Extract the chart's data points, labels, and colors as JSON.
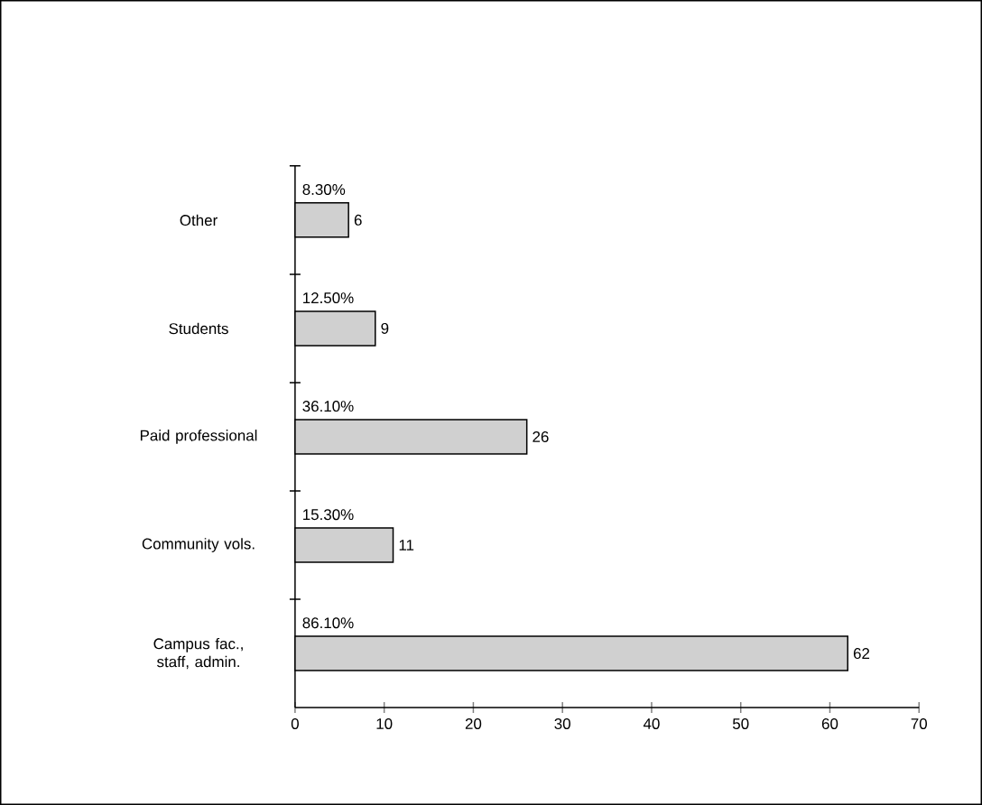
{
  "chart_data": {
    "type": "bar",
    "orientation": "horizontal",
    "categories": [
      "Other",
      "Students",
      "Paid professional",
      "Community vols.",
      "Campus fac., staff, admin."
    ],
    "values": [
      6,
      9,
      26,
      11,
      62
    ],
    "color": "#d0d0d0",
    "data_labels": true,
    "xlim": [
      0,
      70
    ],
    "xticks": [
      0,
      10,
      20,
      30,
      40,
      50,
      60,
      70
    ],
    "grid": false,
    "annotations": [
      "8.30%",
      "12.50%",
      "36.10%",
      "15.30%",
      "86.10%"
    ]
  }
}
